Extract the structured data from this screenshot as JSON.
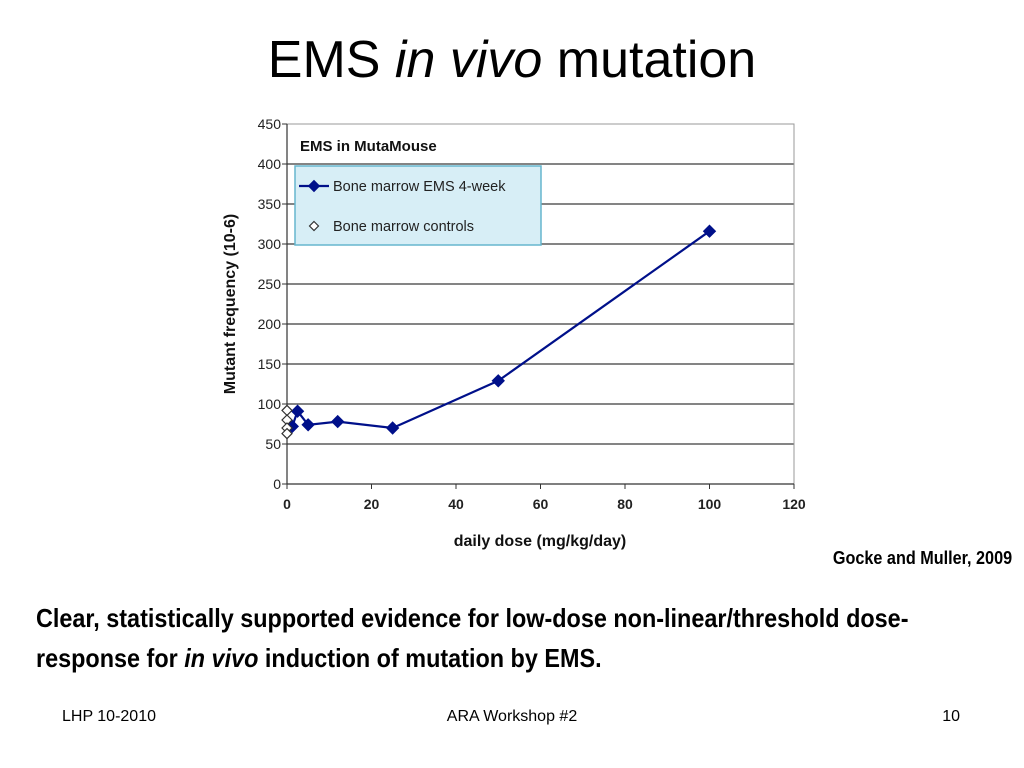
{
  "slide": {
    "title_part1": "EMS",
    "title_italic": "in vivo",
    "title_part2": "mutation",
    "citation": "Gocke and Muller, 2009",
    "conclusion_part1": "Clear, statistically supported evidence for low-dose non-linear/threshold dose-response for",
    "conclusion_italic": "in vivo",
    "conclusion_part2": "induction of mutation by EMS.",
    "footer_left": "LHP 10-2010",
    "footer_center": "ARA Workshop #2",
    "footer_right": "10"
  },
  "chart_data": {
    "type": "line",
    "title": "EMS in MutaMouse",
    "xlabel": "daily dose (mg/kg/day)",
    "ylabel": "Mutant frequency (10-6)",
    "xlim": [
      0,
      120
    ],
    "ylim": [
      0,
      450
    ],
    "x_ticks": [
      "0",
      "20",
      "40",
      "60",
      "80",
      "100",
      "120"
    ],
    "y_ticks": [
      "0",
      "50",
      "100",
      "150",
      "200",
      "250",
      "300",
      "350",
      "400",
      "450"
    ],
    "grid": "horizontal",
    "legend_position": "top-left",
    "series": [
      {
        "name": "Bone marrow EMS 4-week",
        "marker": "filled-diamond",
        "line": true,
        "color": "#00108a",
        "points": [
          {
            "x": 1.25,
            "y": 72
          },
          {
            "x": 2.5,
            "y": 91
          },
          {
            "x": 5,
            "y": 74
          },
          {
            "x": 12,
            "y": 78
          },
          {
            "x": 25,
            "y": 70
          },
          {
            "x": 50,
            "y": 129
          },
          {
            "x": 100,
            "y": 316
          }
        ]
      },
      {
        "name": "Bone marrow controls",
        "marker": "open-diamond",
        "line": false,
        "color": "#00108a",
        "points": [
          {
            "x": 0,
            "y": 92
          },
          {
            "x": 0,
            "y": 80
          },
          {
            "x": 0,
            "y": 70
          },
          {
            "x": 0,
            "y": 63
          }
        ]
      }
    ]
  }
}
